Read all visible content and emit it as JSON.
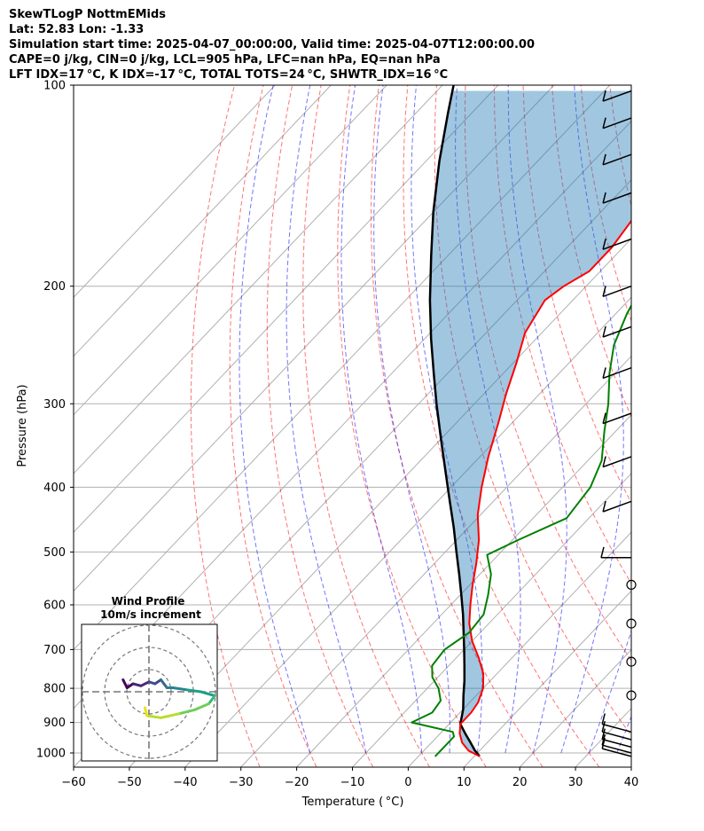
{
  "header": {
    "line1": "SkewTLogP NottmEMids",
    "line2": "Lat: 52.83   Lon: -1.33",
    "line3": "Simulation start time: 2025-04-07_00:00:00, Valid time: 2025-04-07T12:00:00.00",
    "line4": "CAPE=0 j/kg, CIN=0 j/kg, LCL=905 hPa, LFC=nan hPa, EQ=nan hPa",
    "line5": "LFT IDX=17 °C, K IDX=-17 °C, TOTAL TOTS=24 °C, SHWTR_IDX=16 °C"
  },
  "chart_data": {
    "type": "line",
    "subtype": "skew-t log-p",
    "xlabel": "Temperature ( °C)",
    "ylabel": "Pressure (hPa)",
    "xlim": [
      -60,
      40
    ],
    "ylim": [
      1050,
      100
    ],
    "yscale": "log",
    "xticks": [
      -60,
      -50,
      -40,
      -30,
      -20,
      -10,
      0,
      10,
      20,
      30,
      40
    ],
    "yticks": [
      100,
      200,
      300,
      400,
      500,
      600,
      700,
      800,
      900,
      1000
    ],
    "grid": true,
    "series": [
      {
        "role": "temperature",
        "color": "#ff0000",
        "points": [
          [
            1012,
            11
          ],
          [
            992,
            8
          ],
          [
            965,
            5.5
          ],
          [
            935,
            3.5
          ],
          [
            905,
            2
          ],
          [
            870,
            2
          ],
          [
            840,
            1.5
          ],
          [
            800,
            0
          ],
          [
            760,
            -2.5
          ],
          [
            720,
            -6
          ],
          [
            680,
            -10
          ],
          [
            640,
            -13.5
          ],
          [
            600,
            -16.5
          ],
          [
            560,
            -19.5
          ],
          [
            520,
            -22.5
          ],
          [
            480,
            -26
          ],
          [
            440,
            -30.5
          ],
          [
            400,
            -34.5
          ],
          [
            360,
            -38.5
          ],
          [
            320,
            -42.5
          ],
          [
            290,
            -46
          ],
          [
            260,
            -49.5
          ],
          [
            235,
            -53
          ],
          [
            210,
            -55
          ],
          [
            200,
            -54
          ],
          [
            190,
            -52
          ],
          [
            175,
            -52
          ],
          [
            160,
            -53
          ],
          [
            148,
            -54
          ],
          [
            133,
            -56
          ],
          [
            120,
            -59
          ],
          [
            110,
            -62
          ],
          [
            100,
            -65
          ]
        ]
      },
      {
        "role": "dewpoint",
        "color": "#008000",
        "points": [
          [
            1012,
            3
          ],
          [
            975,
            3
          ],
          [
            945,
            3
          ],
          [
            930,
            2
          ],
          [
            900,
            -7
          ],
          [
            870,
            -5
          ],
          [
            835,
            -5.5
          ],
          [
            800,
            -8
          ],
          [
            770,
            -11
          ],
          [
            740,
            -13
          ],
          [
            700,
            -13.5
          ],
          [
            660,
            -12
          ],
          [
            620,
            -12.5
          ],
          [
            580,
            -15
          ],
          [
            540,
            -18
          ],
          [
            505,
            -22
          ],
          [
            480,
            -19
          ],
          [
            445,
            -14
          ],
          [
            400,
            -15
          ],
          [
            365,
            -17.5
          ],
          [
            330,
            -22
          ],
          [
            300,
            -26
          ],
          [
            270,
            -31
          ],
          [
            245,
            -35
          ],
          [
            220,
            -38
          ],
          [
            200,
            -40
          ],
          [
            180,
            -42.5
          ],
          [
            162,
            -45
          ],
          [
            150,
            -49
          ],
          [
            142,
            -55
          ],
          [
            133,
            -53
          ],
          [
            118,
            -51
          ],
          [
            108,
            -50
          ],
          [
            100,
            -49
          ]
        ]
      },
      {
        "role": "parcel",
        "color": "#000000",
        "points": [
          [
            1012,
            11
          ],
          [
            990,
            9
          ],
          [
            965,
            7
          ],
          [
            935,
            4.5
          ],
          [
            905,
            2
          ],
          [
            860,
            0
          ],
          [
            820,
            -2.3
          ],
          [
            780,
            -4.6
          ],
          [
            740,
            -7.2
          ],
          [
            700,
            -10
          ],
          [
            660,
            -13
          ],
          [
            620,
            -16.2
          ],
          [
            580,
            -19.8
          ],
          [
            540,
            -23.7
          ],
          [
            500,
            -28
          ],
          [
            460,
            -32.6
          ],
          [
            420,
            -37.8
          ],
          [
            380,
            -43.5
          ],
          [
            340,
            -49.8
          ],
          [
            300,
            -56.8
          ],
          [
            270,
            -62.5
          ],
          [
            240,
            -68.8
          ],
          [
            210,
            -75.6
          ],
          [
            180,
            -83
          ],
          [
            155,
            -90
          ],
          [
            130,
            -97.6
          ],
          [
            110,
            -104.3
          ],
          [
            100,
            -108
          ]
        ]
      }
    ],
    "wind_barbs": [
      {
        "p": 1012,
        "type": "barb"
      },
      {
        "p": 1000,
        "type": "barb"
      },
      {
        "p": 980,
        "type": "barb"
      },
      {
        "p": 955,
        "type": "barb"
      },
      {
        "p": 930,
        "type": "barb"
      },
      {
        "p": 820,
        "type": "calm"
      },
      {
        "p": 730,
        "type": "calm"
      },
      {
        "p": 640,
        "type": "calm"
      },
      {
        "p": 560,
        "type": "calm"
      },
      {
        "p": 510,
        "type": "barb"
      },
      {
        "p": 420,
        "type": "barb"
      },
      {
        "p": 360,
        "type": "barb"
      },
      {
        "p": 310,
        "type": "barb"
      },
      {
        "p": 265,
        "type": "barb"
      },
      {
        "p": 230,
        "type": "barb"
      },
      {
        "p": 200,
        "type": "barb"
      },
      {
        "p": 170,
        "type": "barb"
      },
      {
        "p": 145,
        "type": "barb"
      },
      {
        "p": 127,
        "type": "barb"
      },
      {
        "p": 112,
        "type": "barb"
      },
      {
        "p": 102,
        "type": "barb"
      }
    ],
    "inset": {
      "title": "Wind Profile",
      "subtitle": "10m/s increment",
      "hodograph": [
        [
          -1.3,
          0.6
        ],
        [
          -1.1,
          0.2
        ],
        [
          -0.8,
          0.4
        ],
        [
          -0.4,
          0.3
        ],
        [
          0,
          0.5
        ],
        [
          0.3,
          0.4
        ],
        [
          0.6,
          0.6
        ],
        [
          0.9,
          0.2
        ],
        [
          1.2,
          0.2
        ],
        [
          1.9,
          0.1
        ],
        [
          2.6,
          0.0
        ],
        [
          3.3,
          -0.2
        ],
        [
          3.0,
          -0.6
        ],
        [
          2.3,
          -0.9
        ],
        [
          1.5,
          -1.1
        ],
        [
          0.6,
          -1.3
        ],
        [
          -0.1,
          -1.2
        ],
        [
          -0.2,
          -0.8
        ]
      ]
    }
  }
}
